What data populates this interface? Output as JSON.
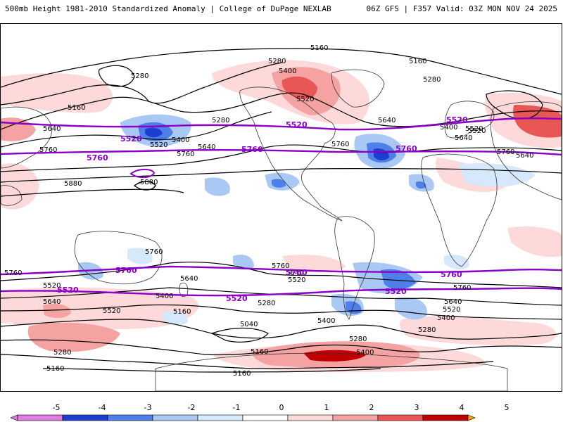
{
  "header": {
    "title_left": "500mb Height 1981-2010 Standardized Anomaly | College of DuPage NEXLAB",
    "title_right": "06Z GFS | F357 Valid: 03Z MON NOV 24 2025"
  },
  "colorbar": {
    "ticks": [
      "-5",
      "-4",
      "-3",
      "-2",
      "-1",
      "0",
      "1",
      "2",
      "3",
      "4",
      "5"
    ],
    "colors": [
      "#e07be0",
      "#8a00c8",
      "#1c3fd0",
      "#4f7fe8",
      "#a9c9f4",
      "#d6e8fb",
      "#ffffff",
      "#fdd9d9",
      "#f4a2a2",
      "#e85656",
      "#c00000",
      "#f7a600"
    ]
  },
  "map": {
    "contour_labels": {
      "c1": "5160",
      "c2": "5160",
      "c3": "5280",
      "c4": "5280",
      "c5": "5400",
      "c6": "5520",
      "c7": "5160",
      "c8": "5640",
      "c9": "5280",
      "c10": "5400",
      "c11": "5520",
      "c12": "5760",
      "c13": "5760",
      "c14": "5880",
      "c15": "5880",
      "c16": "5640",
      "c17": "5760",
      "c18": "5640",
      "c19": "5400",
      "c20": "5520",
      "c21": "5640",
      "c22": "5760",
      "c23": "5280",
      "c24": "5760",
      "c25": "5640",
      "c26": "5760",
      "c27": "5520",
      "c28": "5640",
      "c29": "5520",
      "c30": "5400",
      "c31": "5160",
      "c32": "5040",
      "c33": "5160",
      "c34": "5280",
      "c35": "5400",
      "c36": "5640",
      "c37": "5520",
      "c38": "5280",
      "c39": "5160",
      "c40": "5280",
      "c41": "5160",
      "c42": "5640",
      "c43": "5520",
      "c44": "5400",
      "c45": "5280",
      "c46": "5760",
      "c47": "5640",
      "c48": "5520",
      "c49": "5760",
      "c50": "5400"
    },
    "climo_labels": {
      "p1": "5520",
      "p2": "5520",
      "p3": "5520",
      "p4": "5760",
      "p5": "5760",
      "p6": "5760",
      "p7": "5760",
      "p8": "5760",
      "p9": "5760",
      "p10": "5520",
      "p11": "5520",
      "p12": "5520"
    }
  }
}
